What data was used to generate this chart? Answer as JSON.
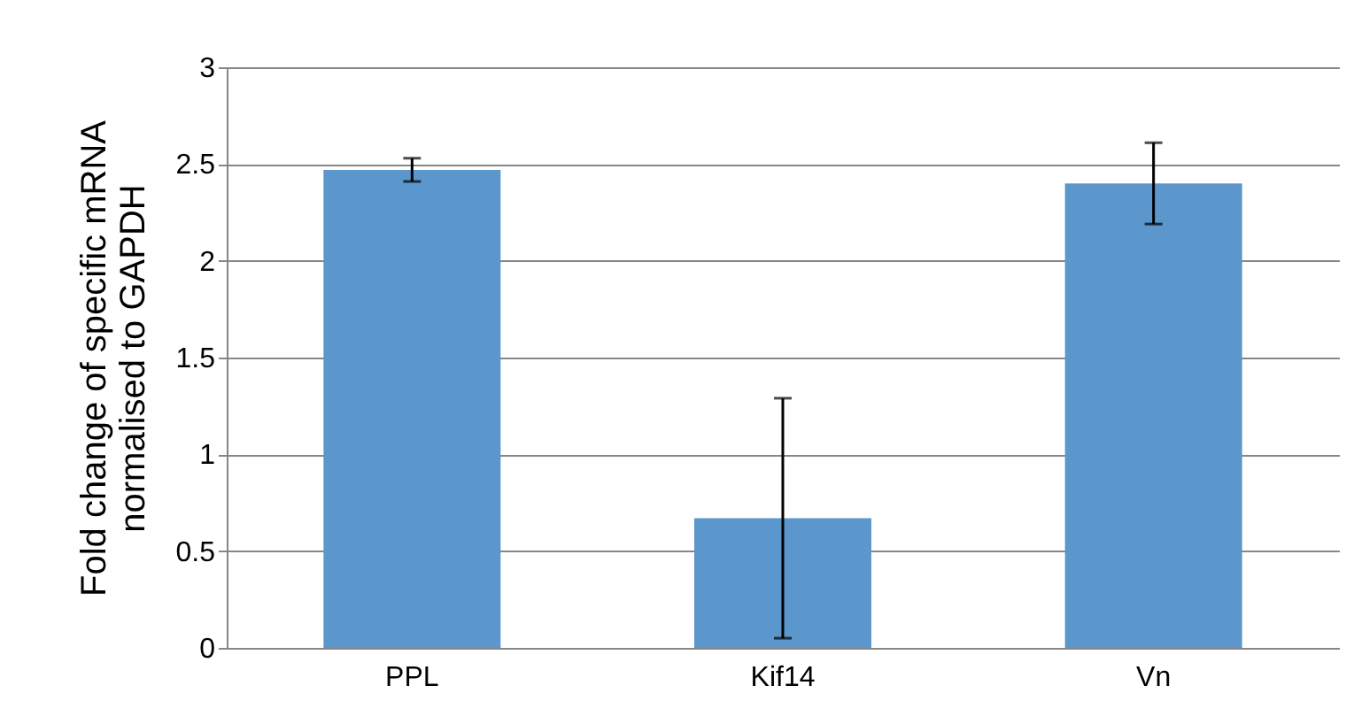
{
  "chart_data": {
    "type": "bar",
    "ylabel": "Fold change of specific mRNA\nnormalised to GAPDH",
    "categories": [
      "PPL",
      "Kif14",
      "Vn"
    ],
    "values": [
      2.47,
      0.67,
      2.4
    ],
    "errors": [
      0.06,
      0.62,
      0.21
    ],
    "color": "#5b96cc",
    "ylim": [
      0,
      3
    ],
    "yticks": [
      0,
      0.5,
      1,
      1.5,
      2,
      2.5,
      3
    ],
    "grid": "y"
  }
}
